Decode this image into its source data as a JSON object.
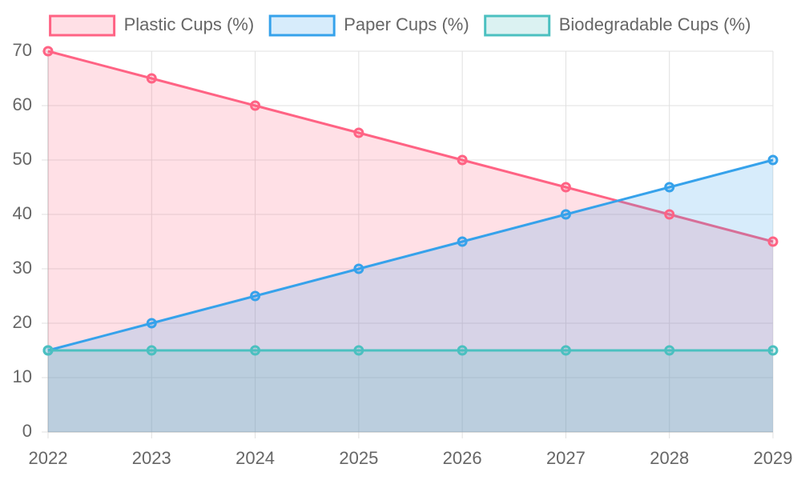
{
  "chart_data": {
    "type": "line",
    "fill": true,
    "grid": true,
    "legend": "top",
    "categories": [
      "2022",
      "2023",
      "2024",
      "2025",
      "2026",
      "2027",
      "2028",
      "2029"
    ],
    "series": [
      {
        "name": "Plastic Cups (%)",
        "color": "#ff6384",
        "values": [
          70,
          65,
          60,
          55,
          50,
          45,
          40,
          35
        ]
      },
      {
        "name": "Paper Cups (%)",
        "color": "#36a2eb",
        "values": [
          15,
          20,
          25,
          30,
          35,
          40,
          45,
          50
        ]
      },
      {
        "name": "Biodegradable Cups (%)",
        "color": "#4bc0c0",
        "values": [
          15,
          15,
          15,
          15,
          15,
          15,
          15,
          15
        ]
      }
    ],
    "ylim": [
      0,
      70
    ],
    "yticks": [
      0,
      10,
      20,
      30,
      40,
      50,
      60,
      70
    ]
  }
}
